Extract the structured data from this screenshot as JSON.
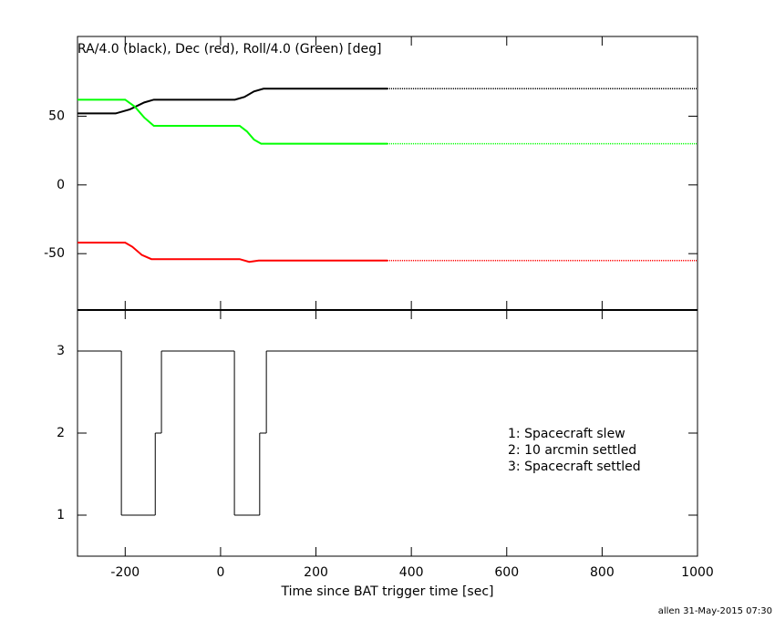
{
  "chart_data": [
    {
      "type": "line",
      "title": "RA/4.0 (black), Dec (red), Roll/4.0 (Green) [deg]",
      "xlim": [
        -300,
        1000
      ],
      "xticks": [
        -200,
        0,
        200,
        400,
        600,
        800,
        1000
      ],
      "ylim": [
        -91,
        108
      ],
      "yticks": [
        -50,
        0,
        50
      ],
      "series": [
        {
          "color": "#000000",
          "dash": false,
          "x": [
            -300,
            -220,
            -190,
            -160,
            -140,
            30,
            50,
            70,
            90,
            350
          ],
          "values": [
            52,
            52,
            55,
            60,
            62,
            62,
            64,
            68,
            70,
            70
          ]
        },
        {
          "color": "#000000",
          "dash": true,
          "x": [
            350,
            1000
          ],
          "values": [
            70,
            70
          ]
        },
        {
          "color": "#00ff00",
          "dash": false,
          "x": [
            -300,
            -200,
            -180,
            -160,
            -140,
            40,
            55,
            70,
            85,
            350
          ],
          "values": [
            62,
            62,
            57,
            49,
            43,
            43,
            39,
            33,
            30,
            30
          ]
        },
        {
          "color": "#00ff00",
          "dash": true,
          "x": [
            350,
            1000
          ],
          "values": [
            30,
            30
          ]
        },
        {
          "color": "#ff0000",
          "dash": false,
          "x": [
            -300,
            -200,
            -185,
            -165,
            -145,
            40,
            60,
            80,
            350
          ],
          "values": [
            -42,
            -42,
            -45,
            -51,
            -54,
            -54,
            -56,
            -55,
            -55
          ]
        },
        {
          "color": "#ff0000",
          "dash": true,
          "x": [
            350,
            1000
          ],
          "values": [
            -55,
            -55
          ]
        }
      ]
    },
    {
      "type": "step",
      "x_label": "Time since BAT trigger time [sec]",
      "xlim": [
        -300,
        1000
      ],
      "xticks": [
        -200,
        0,
        200,
        400,
        600,
        800,
        1000
      ],
      "ylim": [
        0.5,
        3.5
      ],
      "yticks": [
        1,
        2,
        3
      ],
      "annotations": [
        "1: Spacecraft slew",
        "2: 10 arcmin settled",
        "3: Spacecraft settled"
      ],
      "series": [
        {
          "color": "#000000",
          "x": [
            -300,
            -208,
            -137,
            -124,
            29,
            82,
            96
          ],
          "values": [
            3,
            1,
            2,
            3,
            1,
            2,
            3
          ]
        }
      ]
    }
  ],
  "footer": "allen 31-May-2015 07:30"
}
